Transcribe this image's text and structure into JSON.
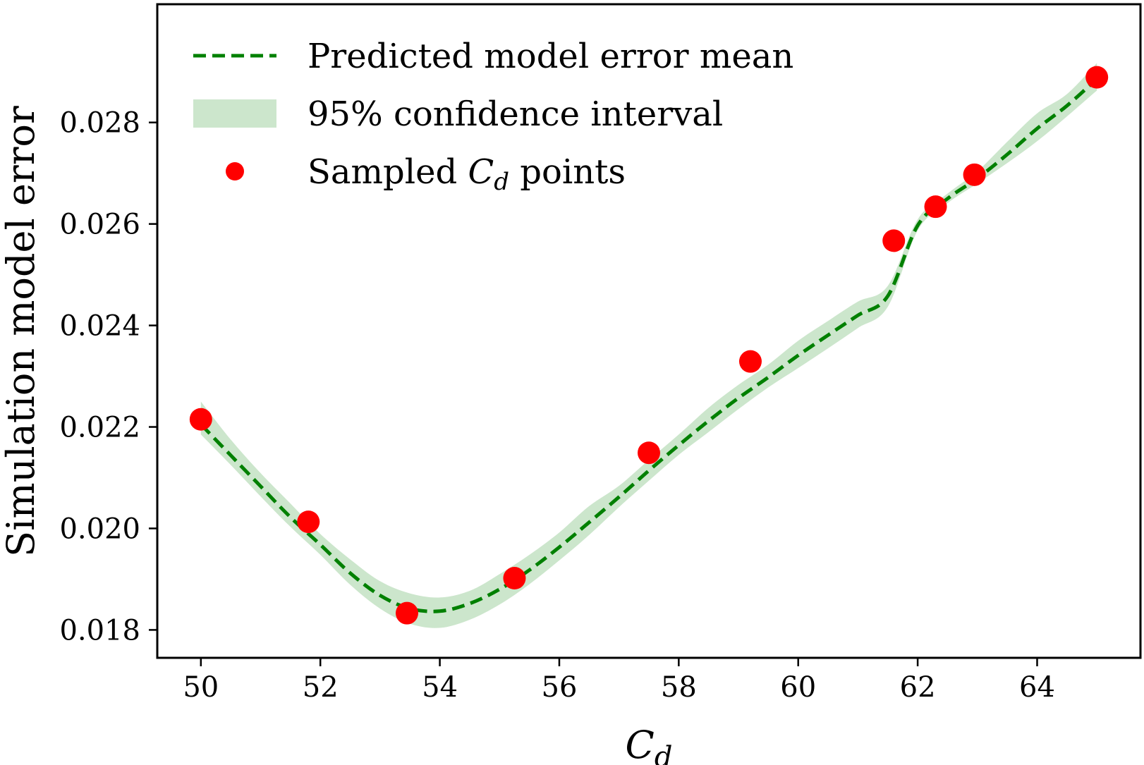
{
  "chart_data": {
    "type": "line",
    "xlabel": "C_d",
    "ylabel": "Simulation model error",
    "xlim": [
      49.27,
      65.73
    ],
    "ylim": [
      0.01745,
      0.03033
    ],
    "x_ticks": [
      50,
      52,
      54,
      56,
      58,
      60,
      62,
      64
    ],
    "y_ticks": [
      0.018,
      0.02,
      0.022,
      0.024,
      0.026,
      0.028
    ],
    "x_tick_labels": [
      "50",
      "52",
      "54",
      "56",
      "58",
      "60",
      "62",
      "64"
    ],
    "y_tick_labels": [
      "0.018",
      "0.020",
      "0.022",
      "0.024",
      "0.026",
      "0.028"
    ],
    "grid": false,
    "legend_position": "upper-left",
    "series": [
      {
        "name": "Predicted model error mean",
        "style": "dashed-line",
        "color": "#008000",
        "x": [
          50.0,
          50.5,
          51.0,
          51.5,
          52.0,
          52.5,
          53.0,
          53.5,
          54.0,
          54.5,
          55.0,
          55.5,
          56.0,
          56.5,
          57.0,
          57.5,
          58.0,
          58.5,
          59.0,
          59.5,
          60.0,
          60.5,
          61.0,
          61.5,
          62.0,
          62.5,
          63.0,
          63.5,
          64.0,
          64.5,
          65.0
        ],
        "y": [
          0.02205,
          0.02144,
          0.02083,
          0.02022,
          0.01968,
          0.01912,
          0.01868,
          0.01842,
          0.01837,
          0.01852,
          0.0188,
          0.01918,
          0.01963,
          0.02012,
          0.02062,
          0.02114,
          0.02164,
          0.02212,
          0.02257,
          0.02298,
          0.02341,
          0.02381,
          0.0242,
          0.02458,
          0.02597,
          0.0265,
          0.0269,
          0.02737,
          0.02788,
          0.02833,
          0.02886
        ]
      },
      {
        "name": "95% confidence interval",
        "style": "band",
        "color": "#008000",
        "opacity": 0.2,
        "x": [
          50.0,
          50.5,
          51.0,
          51.5,
          52.0,
          52.5,
          53.0,
          53.5,
          54.0,
          54.5,
          55.0,
          55.5,
          56.0,
          56.5,
          57.0,
          57.5,
          58.0,
          58.5,
          59.0,
          59.5,
          60.0,
          60.5,
          61.0,
          61.5,
          62.0,
          62.5,
          63.0,
          63.5,
          64.0,
          64.5,
          65.0
        ],
        "lower": [
          0.02185,
          0.02125,
          0.02063,
          0.02003,
          0.01948,
          0.01889,
          0.01842,
          0.01812,
          0.01804,
          0.0182,
          0.0185,
          0.0189,
          0.01937,
          0.01987,
          0.02042,
          0.02094,
          0.02145,
          0.0219,
          0.02235,
          0.02278,
          0.02316,
          0.02355,
          0.02395,
          0.02437,
          0.02587,
          0.02641,
          0.0268,
          0.0272,
          0.02763,
          0.02812,
          0.02863
        ],
        "upper": [
          0.0225,
          0.02175,
          0.02109,
          0.02049,
          0.01989,
          0.01939,
          0.01896,
          0.01872,
          0.01864,
          0.01877,
          0.0191,
          0.01948,
          0.01992,
          0.02044,
          0.02084,
          0.02135,
          0.02185,
          0.02238,
          0.02283,
          0.02323,
          0.0237,
          0.02409,
          0.02447,
          0.02478,
          0.02609,
          0.0266,
          0.02704,
          0.02762,
          0.02818,
          0.02856,
          0.02917
        ]
      },
      {
        "name": "Sampled C_d points",
        "style": "markers",
        "color": "#ff0000",
        "x": [
          50.0,
          51.8,
          53.45,
          55.25,
          57.5,
          59.2,
          61.6,
          62.3,
          62.95,
          65.0
        ],
        "y": [
          0.02215,
          0.02013,
          0.01833,
          0.01902,
          0.02149,
          0.02329,
          0.02567,
          0.02634,
          0.02697,
          0.02889
        ]
      }
    ]
  }
}
